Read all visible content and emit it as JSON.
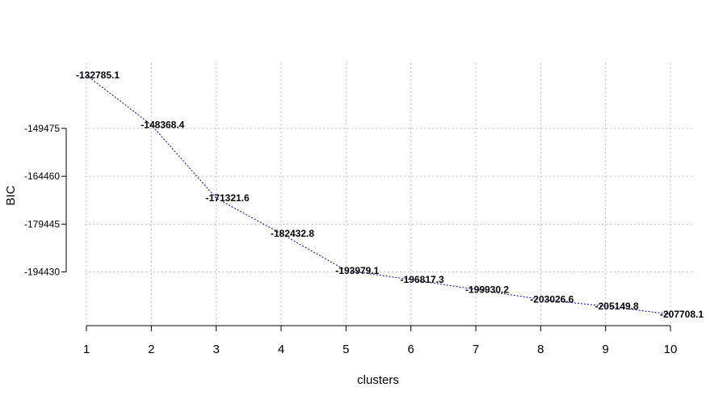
{
  "chart_data": {
    "type": "line",
    "xlabel": "clusters",
    "ylabel": "BIC",
    "x": [
      1,
      2,
      3,
      4,
      5,
      6,
      7,
      8,
      9,
      10
    ],
    "xticks": [
      1,
      2,
      3,
      4,
      5,
      6,
      7,
      8,
      9,
      10
    ],
    "yticks": [
      -149475,
      -164460,
      -179445,
      -194430
    ],
    "xlim": [
      1,
      10
    ],
    "ylim": [
      -207708.1,
      -132785.1
    ],
    "grid": true,
    "series": [
      {
        "values": [
          -132785.1,
          -148368.4,
          -171321.6,
          -182432.8,
          -193979.1,
          -196817.3,
          -199930.2,
          -203026.6,
          -205149.8,
          -207708.1
        ],
        "labels": [
          "-132785.1",
          "-148368.4",
          "-171321.6",
          "-182432.8",
          "-193979.1",
          "-196817.3",
          "-199930.2",
          "-203026.6",
          "-205149.8",
          "-207708.1"
        ],
        "color": "#00008b"
      }
    ]
  }
}
